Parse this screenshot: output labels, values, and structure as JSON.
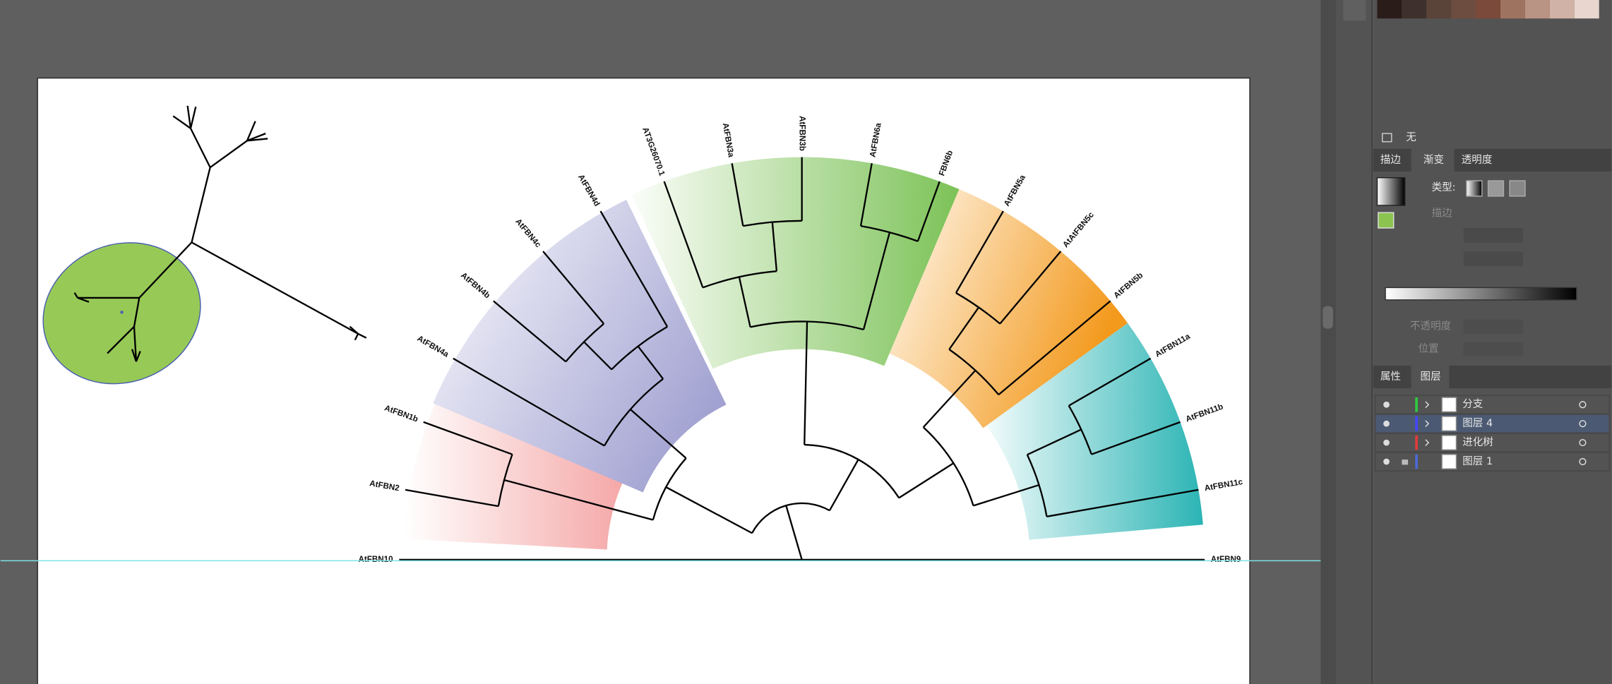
{
  "tree": {
    "leaves": [
      "AtFBN10",
      "AtFBN2",
      "AtFBN1b",
      "AtFBN4a",
      "AtFBN4b",
      "AtFBN4c",
      "AtFBN4d",
      "AT3G26070.1",
      "AtFBN3a",
      "AtFBN3b",
      "AtFBN6a",
      "FBN6b",
      "AtFBN5a",
      "AtAtFBN5c",
      "AtFBN5b",
      "AtFBN11a",
      "AtFBN11b",
      "AtFBN11c",
      "AtFBN9"
    ]
  },
  "ui": {
    "swatch_label": "无",
    "tabs1": [
      "描边",
      "渐变",
      "透明度"
    ],
    "type_label": "类型:",
    "stroke_label": "描边",
    "opacity_label": "不透明度",
    "position_label": "位置",
    "tabs2": [
      "属性",
      "图层"
    ],
    "layers": [
      "分支",
      "图层 4",
      "进化树",
      "图层 1"
    ]
  }
}
